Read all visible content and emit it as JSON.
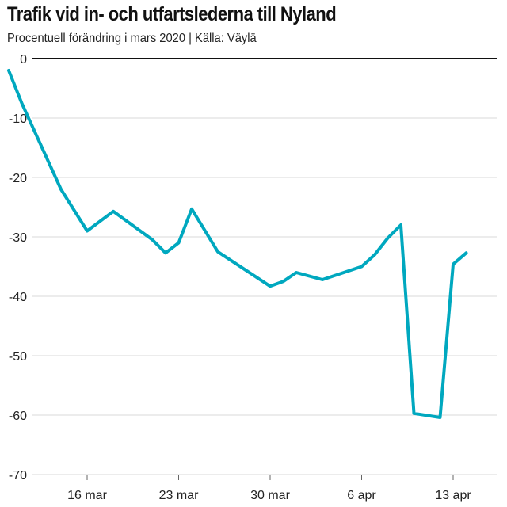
{
  "chart_data": {
    "type": "line",
    "title": "Trafik vid in- och utfartslederna till Nyland",
    "subtitle": "Procentuell förändring i mars 2020 | Källa: Väylä",
    "xlabel": "",
    "ylabel": "",
    "ylim": [
      -70,
      0
    ],
    "y_ticks": [
      0,
      -10,
      -20,
      -30,
      -40,
      -50,
      -60,
      -70
    ],
    "x_ticks": [
      {
        "day": 16,
        "label": "16 mar"
      },
      {
        "day": 23,
        "label": "23 mar"
      },
      {
        "day": 30,
        "label": "30 mar"
      },
      {
        "day": 37,
        "label": "6 apr"
      },
      {
        "day": 44,
        "label": "13 apr"
      }
    ],
    "x_unit": "day of March 2020 (32 = 1 apr)",
    "x": [
      10,
      11,
      14,
      16,
      18,
      21,
      22,
      23,
      24,
      26,
      30,
      31,
      32,
      34,
      37,
      38,
      39,
      40,
      41,
      43,
      44,
      45
    ],
    "series": [
      {
        "color": "#00a8bf",
        "values": [
          -2,
          -7.5,
          -22,
          -29,
          -25.7,
          -30.5,
          -32.7,
          -31,
          -25.3,
          -32.5,
          -38.3,
          -37.5,
          -36,
          -37.2,
          -35,
          -33,
          -30.2,
          -28,
          -59.7,
          -60.4,
          -34.6,
          -32.7
        ]
      }
    ],
    "grid": true,
    "legend": "none"
  }
}
